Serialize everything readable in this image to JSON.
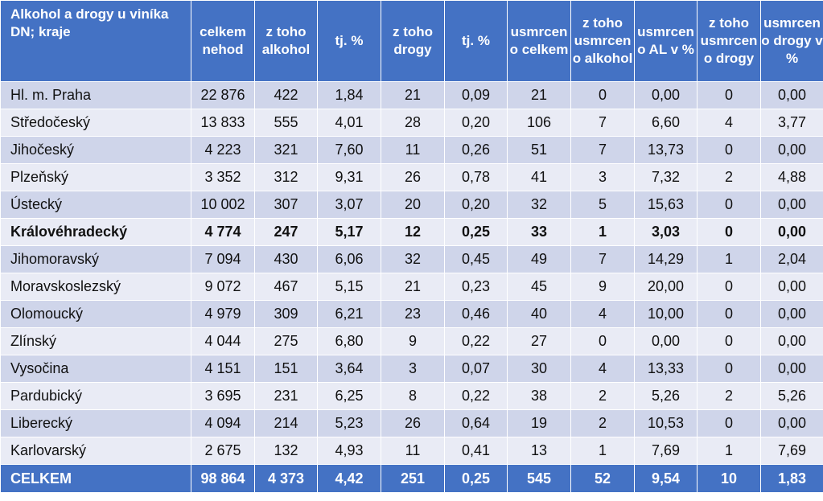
{
  "table": {
    "headers": [
      "Alkohol a drogy u viníka DN; kraje",
      "celkem nehod",
      "z toho alkohol",
      "tj. %",
      "z toho drogy",
      "tj. %",
      "usmrcen o celkem",
      "z toho usmrcen o alkohol",
      "usmrcen o AL v %",
      "z toho usmrcen o drogy",
      "usmrcen o drogy v %"
    ],
    "rows": [
      [
        "Hl. m. Praha",
        "22 876",
        "422",
        "1,84",
        "21",
        "0,09",
        "21",
        "0",
        "0,00",
        "0",
        "0,00"
      ],
      [
        "Středočeský",
        "13 833",
        "555",
        "4,01",
        "28",
        "0,20",
        "106",
        "7",
        "6,60",
        "4",
        "3,77"
      ],
      [
        "Jihočeský",
        "4 223",
        "321",
        "7,60",
        "11",
        "0,26",
        "51",
        "7",
        "13,73",
        "0",
        "0,00"
      ],
      [
        "Plzeňský",
        "3 352",
        "312",
        "9,31",
        "26",
        "0,78",
        "41",
        "3",
        "7,32",
        "2",
        "4,88"
      ],
      [
        "Ústecký",
        "10 002",
        "307",
        "3,07",
        "20",
        "0,20",
        "32",
        "5",
        "15,63",
        "0",
        "0,00"
      ],
      [
        "Královéhradecký",
        "4 774",
        "247",
        "5,17",
        "12",
        "0,25",
        "33",
        "1",
        "3,03",
        "0",
        "0,00"
      ],
      [
        "Jihomoravský",
        "7 094",
        "430",
        "6,06",
        "32",
        "0,45",
        "49",
        "7",
        "14,29",
        "1",
        "2,04"
      ],
      [
        "Moravskoslezský",
        "9 072",
        "467",
        "5,15",
        "21",
        "0,23",
        "45",
        "9",
        "20,00",
        "0",
        "0,00"
      ],
      [
        "Olomoucký",
        "4 979",
        "309",
        "6,21",
        "23",
        "0,46",
        "40",
        "4",
        "10,00",
        "0",
        "0,00"
      ],
      [
        "Zlínský",
        "4 044",
        "275",
        "6,80",
        "9",
        "0,22",
        "27",
        "0",
        "0,00",
        "0",
        "0,00"
      ],
      [
        "Vysočina",
        "4 151",
        "151",
        "3,64",
        "3",
        "0,07",
        "30",
        "4",
        "13,33",
        "0",
        "0,00"
      ],
      [
        "Pardubický",
        "3 695",
        "231",
        "6,25",
        "8",
        "0,22",
        "38",
        "2",
        "5,26",
        "2",
        "5,26"
      ],
      [
        "Liberecký",
        "4 094",
        "214",
        "5,23",
        "26",
        "0,64",
        "19",
        "2",
        "10,53",
        "0",
        "0,00"
      ],
      [
        "Karlovarský",
        "2 675",
        "132",
        "4,93",
        "11",
        "0,41",
        "13",
        "1",
        "7,69",
        "1",
        "7,69"
      ]
    ],
    "bold_row_index": 5,
    "total": [
      "CELKEM",
      "98 864",
      "4 373",
      "4,42",
      "251",
      "0,25",
      "545",
      "52",
      "9,54",
      "10",
      "1,83"
    ]
  },
  "colors": {
    "header": "#4472C4",
    "row_dark": "#CFD5EA",
    "row_light": "#E9EBF5",
    "text": "#111111"
  }
}
